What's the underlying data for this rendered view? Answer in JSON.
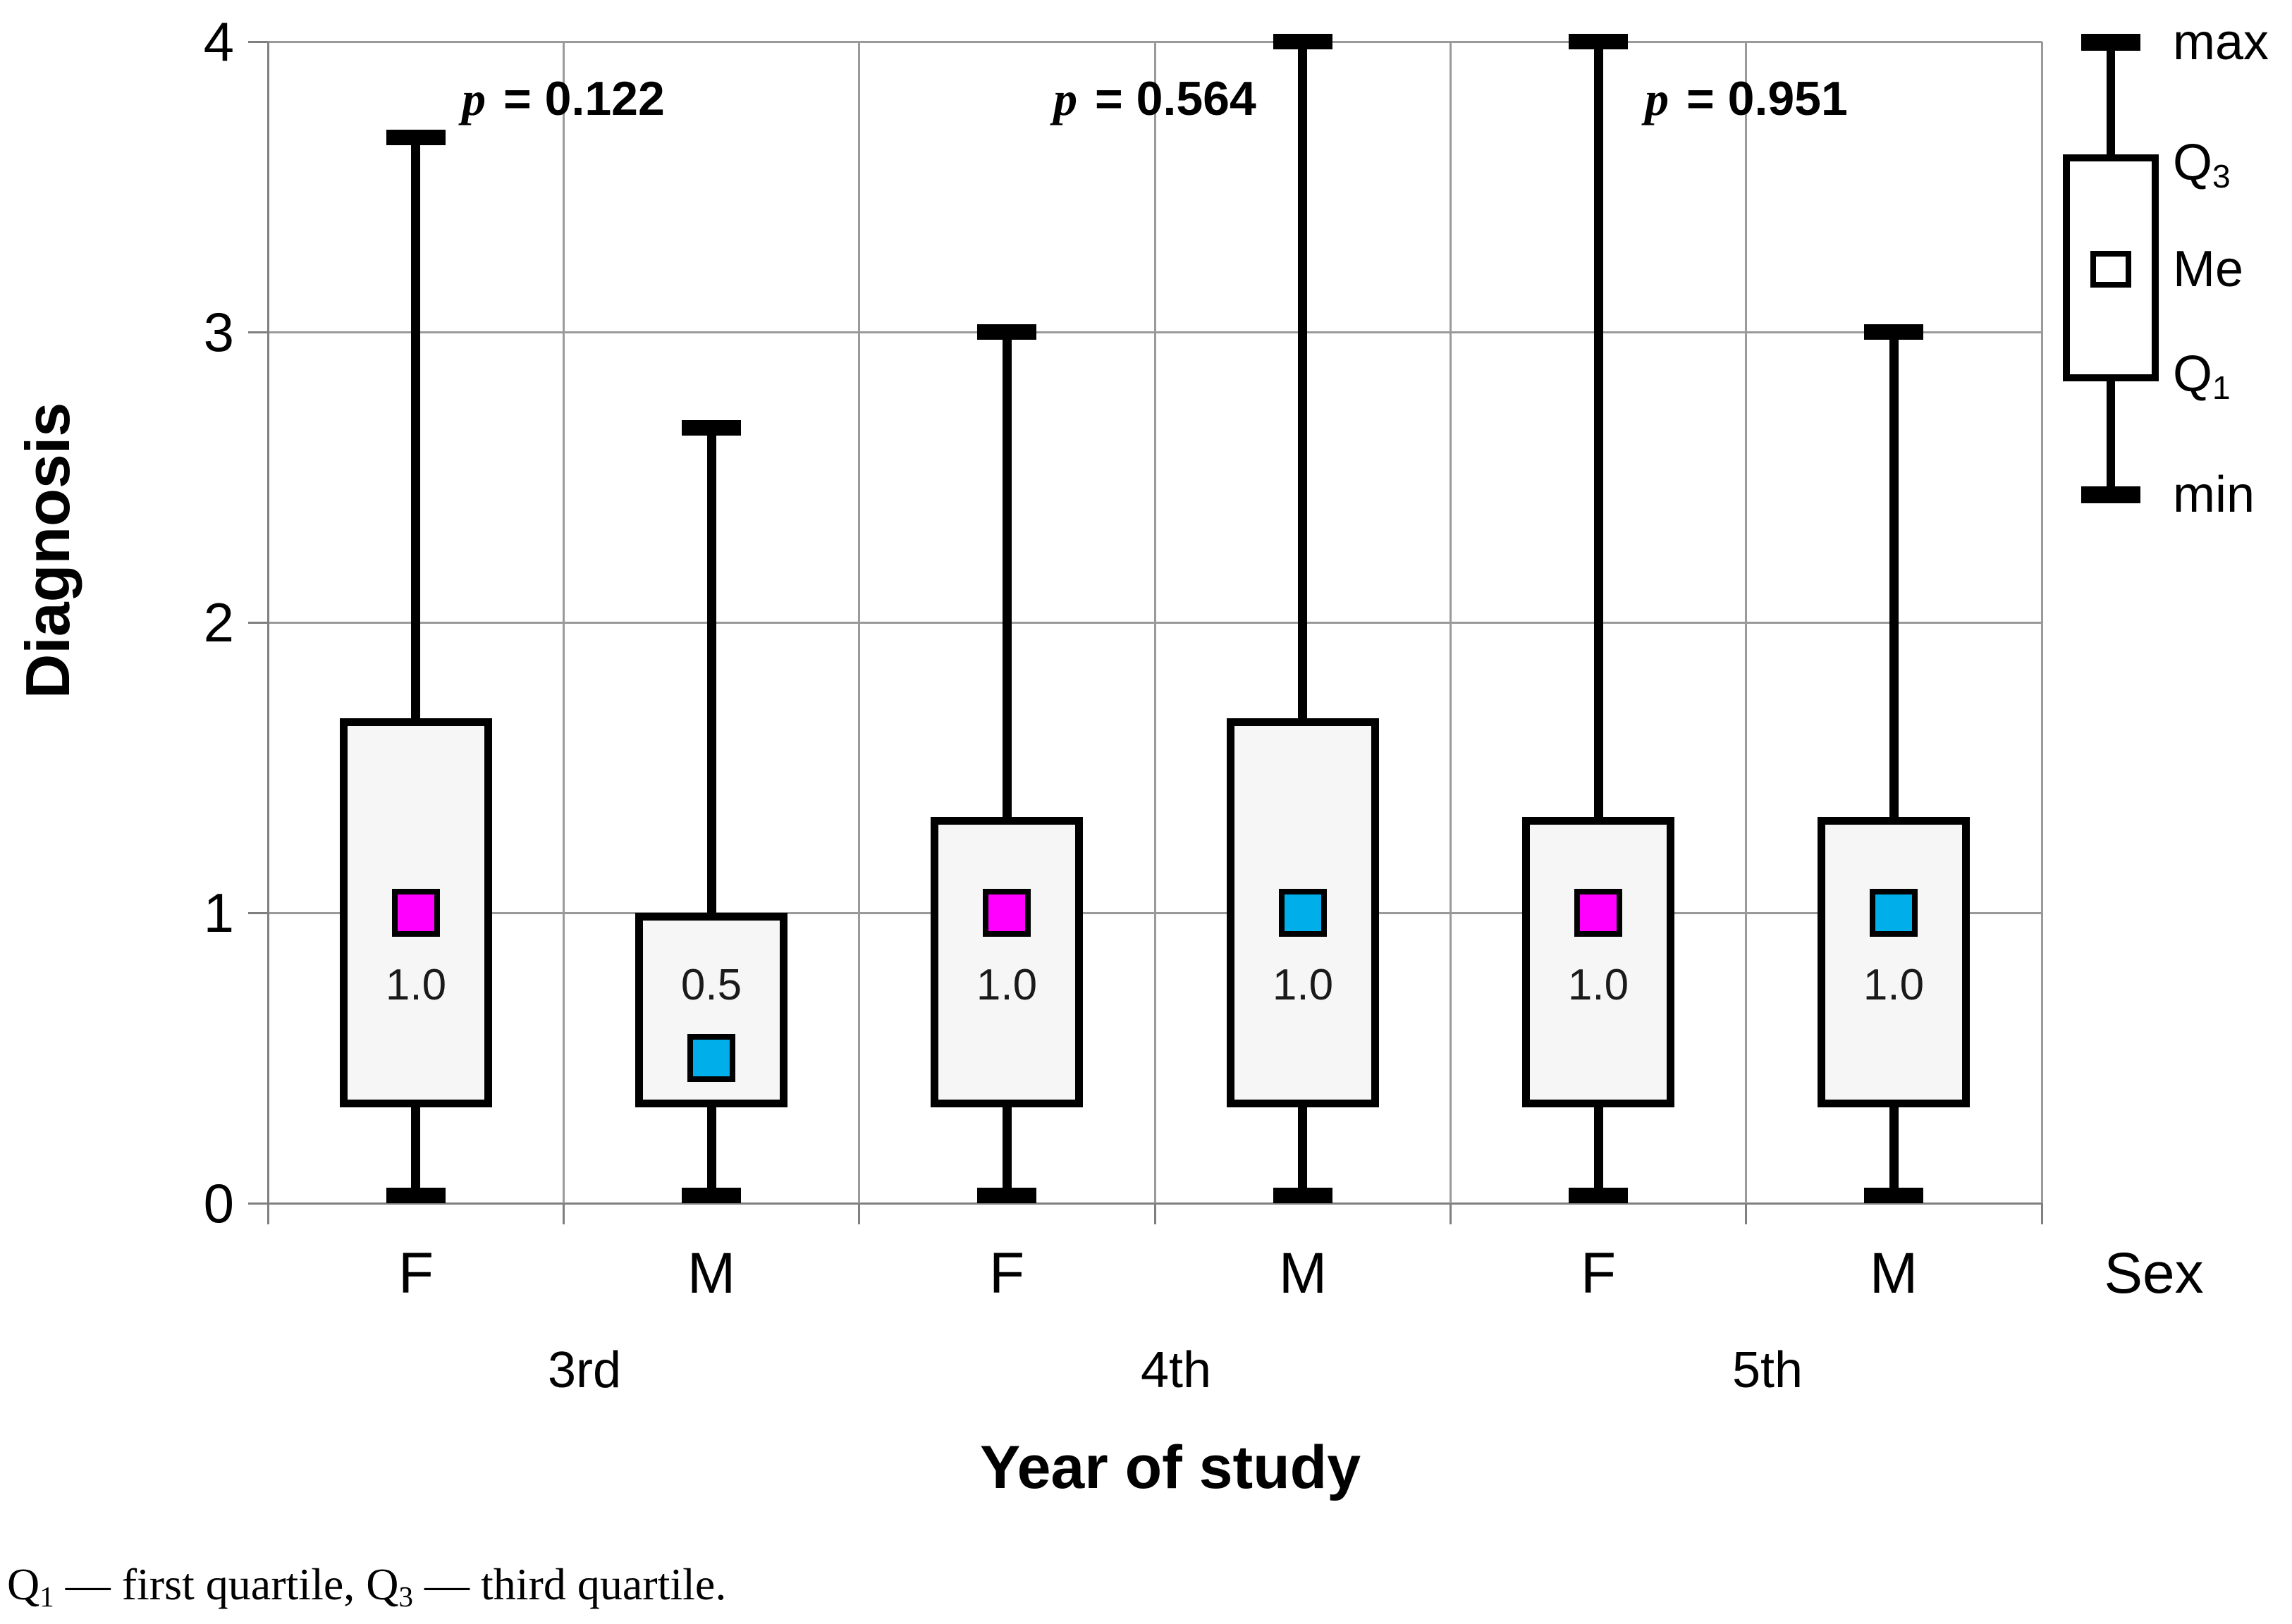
{
  "chart_data": {
    "type": "box",
    "title": "",
    "ylabel": "Diagnosis",
    "xlabel": "Year of study",
    "x_secondary_label": "Sex",
    "ylim": [
      0,
      4
    ],
    "yticks": [
      0,
      1,
      2,
      3,
      4
    ],
    "grid": true,
    "legend_position": "top-right",
    "groups": [
      {
        "label": "3rd",
        "p_value": "p = 0.122"
      },
      {
        "label": "4th",
        "p_value": "p = 0.564"
      },
      {
        "label": "5th",
        "p_value": "p = 0.951"
      }
    ],
    "boxes": [
      {
        "group": "3rd",
        "sex": "F",
        "min": 0,
        "q1": 0.33,
        "median": 1.0,
        "q3": 1.67,
        "max": 3.67,
        "median_label": "1.0",
        "marker_color": "#FF00FF"
      },
      {
        "group": "3rd",
        "sex": "M",
        "min": 0,
        "q1": 0.33,
        "median": 0.5,
        "q3": 1.0,
        "max": 2.67,
        "median_label": "0.5",
        "marker_color": "#00AEEA"
      },
      {
        "group": "4th",
        "sex": "F",
        "min": 0,
        "q1": 0.33,
        "median": 1.0,
        "q3": 1.33,
        "max": 3.0,
        "median_label": "1.0",
        "marker_color": "#FF00FF"
      },
      {
        "group": "4th",
        "sex": "M",
        "min": 0,
        "q1": 0.33,
        "median": 1.0,
        "q3": 1.67,
        "max": 4.0,
        "median_label": "1.0",
        "marker_color": "#00AEEA"
      },
      {
        "group": "5th",
        "sex": "F",
        "min": 0,
        "q1": 0.33,
        "median": 1.0,
        "q3": 1.33,
        "max": 4.0,
        "median_label": "1.0",
        "marker_color": "#FF00FF"
      },
      {
        "group": "5th",
        "sex": "M",
        "min": 0,
        "q1": 0.33,
        "median": 1.0,
        "q3": 1.33,
        "max": 3.0,
        "median_label": "1.0",
        "marker_color": "#00AEEA"
      }
    ],
    "legend": {
      "items": [
        {
          "text": "max",
          "anchor": "cap-top"
        },
        {
          "text": "Q",
          "sub": "3",
          "anchor": "box-top"
        },
        {
          "text": "Me",
          "anchor": "median"
        },
        {
          "text": "Q",
          "sub": "1",
          "anchor": "box-bottom"
        },
        {
          "text": "min",
          "anchor": "cap-bottom"
        }
      ]
    },
    "colors": {
      "female_marker": "#FF00FF",
      "male_marker": "#00AEEA",
      "box_fill": "#F6F6F6",
      "box_border": "#000000",
      "grid": "#9A9A9A",
      "axis": "#7F7F7F",
      "text": "#000000"
    }
  },
  "caption": {
    "parts": [
      {
        "text": "Q"
      },
      {
        "sub": "1"
      },
      {
        "text": " — first quartile, Q"
      },
      {
        "sub": "3"
      },
      {
        "text": " — third quartile."
      }
    ]
  }
}
